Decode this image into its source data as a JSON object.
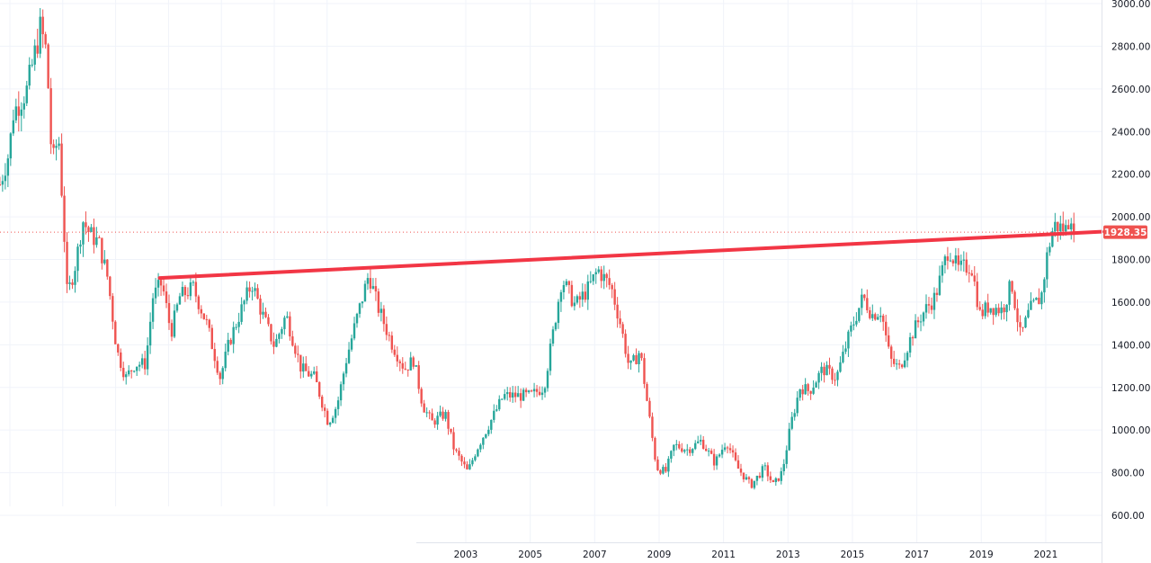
{
  "chart_data": {
    "type": "candlestick",
    "title": "",
    "xlabel": "",
    "ylabel": "",
    "ylim": [
      600,
      3000
    ],
    "y_ticks": [
      "3000.00",
      "2800.00",
      "2600.00",
      "2400.00",
      "2200.00",
      "2000.00",
      "1800.00",
      "1600.00",
      "1400.00",
      "1200.00",
      "1000.00",
      "800.00",
      "600.00"
    ],
    "x_ticks": [
      "2003",
      "2005",
      "2007",
      "2009",
      "2011",
      "2013",
      "2015",
      "2017",
      "2019",
      "2021"
    ],
    "grid": true,
    "last_price": "1928.35",
    "colors": {
      "up": "#26a69a",
      "down": "#ef5350",
      "trendline": "#f23645",
      "price_label": "#ef5350"
    },
    "trendline": {
      "start": [
        1993.5,
        1713
      ],
      "end": [
        2022.75,
        1930
      ]
    },
    "close_path": [
      [
        1988.54,
        2152
      ],
      [
        1988.82,
        2300
      ],
      [
        1988.96,
        2490
      ],
      [
        1989.38,
        2595
      ],
      [
        1989.8,
        2890
      ],
      [
        1989.99,
        2765
      ],
      [
        1990.16,
        2237
      ],
      [
        1990.36,
        2385
      ],
      [
        1990.55,
        1878
      ],
      [
        1990.63,
        1625
      ],
      [
        1990.91,
        1794
      ],
      [
        1991.11,
        1984
      ],
      [
        1991.33,
        1920
      ],
      [
        1991.61,
        1878
      ],
      [
        1991.89,
        1710
      ],
      [
        1992.17,
        1372
      ],
      [
        1992.45,
        1245
      ],
      [
        1992.73,
        1310
      ],
      [
        1993.06,
        1310
      ],
      [
        1993.29,
        1625
      ],
      [
        1993.57,
        1690
      ],
      [
        1993.85,
        1456
      ],
      [
        1994.12,
        1625
      ],
      [
        1994.54,
        1667
      ],
      [
        1994.96,
        1498
      ],
      [
        1995.38,
        1245
      ],
      [
        1995.66,
        1414
      ],
      [
        1996.08,
        1583
      ],
      [
        1996.36,
        1690
      ],
      [
        1996.64,
        1562
      ],
      [
        1997.06,
        1393
      ],
      [
        1997.42,
        1541
      ],
      [
        1997.89,
        1287
      ],
      [
        1998.31,
        1245
      ],
      [
        1998.73,
        1035
      ],
      [
        1999.01,
        1119
      ],
      [
        1999.29,
        1330
      ],
      [
        1999.57,
        1498
      ],
      [
        1999.99,
        1732
      ],
      [
        2000.26,
        1583
      ],
      [
        2000.68,
        1414
      ],
      [
        2001.1,
        1287
      ],
      [
        2001.38,
        1330
      ],
      [
        2001.66,
        1119
      ],
      [
        2001.94,
        1035
      ],
      [
        2002.36,
        1077
      ],
      [
        2002.64,
        908
      ],
      [
        2003.06,
        803
      ],
      [
        2003.33,
        908
      ],
      [
        2003.75,
        1035
      ],
      [
        2004.17,
        1161
      ],
      [
        2004.45,
        1161
      ],
      [
        2005.01,
        1161
      ],
      [
        2005.43,
        1203
      ],
      [
        2005.71,
        1456
      ],
      [
        2005.98,
        1710
      ],
      [
        2006.4,
        1583
      ],
      [
        2006.82,
        1667
      ],
      [
        2007.1,
        1752
      ],
      [
        2007.52,
        1667
      ],
      [
        2007.8,
        1498
      ],
      [
        2008.08,
        1287
      ],
      [
        2008.41,
        1372
      ],
      [
        2008.64,
        1119
      ],
      [
        2008.92,
        824
      ],
      [
        2009.2,
        803
      ],
      [
        2009.47,
        929
      ],
      [
        2009.89,
        908
      ],
      [
        2010.31,
        950
      ],
      [
        2010.73,
        845
      ],
      [
        2011.09,
        950
      ],
      [
        2011.43,
        824
      ],
      [
        2011.85,
        740
      ],
      [
        2012.27,
        824
      ],
      [
        2012.55,
        740
      ],
      [
        2012.82,
        803
      ],
      [
        2013.1,
        1035
      ],
      [
        2013.38,
        1203
      ],
      [
        2013.66,
        1182
      ],
      [
        2014.08,
        1287
      ],
      [
        2014.5,
        1245
      ],
      [
        2014.92,
        1456
      ],
      [
        2015.33,
        1625
      ],
      [
        2015.61,
        1541
      ],
      [
        2015.89,
        1562
      ],
      [
        2016.17,
        1330
      ],
      [
        2016.45,
        1287
      ],
      [
        2016.87,
        1456
      ],
      [
        2017.15,
        1541
      ],
      [
        2017.57,
        1625
      ],
      [
        2017.99,
        1857
      ],
      [
        2018.27,
        1752
      ],
      [
        2018.69,
        1773
      ],
      [
        2018.96,
        1541
      ],
      [
        2019.24,
        1583
      ],
      [
        2019.66,
        1562
      ],
      [
        2019.94,
        1690
      ],
      [
        2020.22,
        1435
      ],
      [
        2020.5,
        1562
      ],
      [
        2020.86,
        1625
      ],
      [
        2021.06,
        1836
      ],
      [
        2021.25,
        1962
      ],
      [
        2021.62,
        1941
      ],
      [
        2021.81,
        2025
      ],
      [
        2021.92,
        1928
      ]
    ]
  }
}
